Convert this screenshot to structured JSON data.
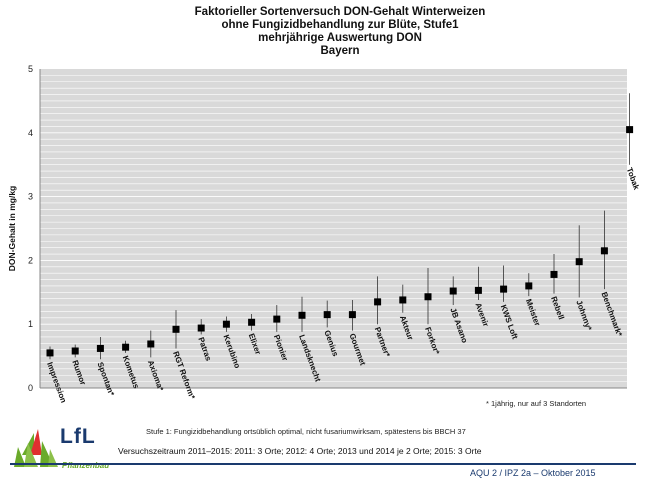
{
  "chart_data": {
    "type": "scatter",
    "title_lines": [
      "Faktorieller  Sortenversuch DON-Gehalt Winterweizen",
      "ohne Fungizidbehandlung zur Blüte, Stufe1",
      "mehrjährige Auswertung DON",
      "Bayern"
    ],
    "ylabel": "DON-Gehalt in mg/kg",
    "ylim": [
      0,
      5
    ],
    "yticks": [
      0,
      1,
      2,
      3,
      4,
      5
    ],
    "grid": true,
    "categories": [
      "Impression",
      "Rumor",
      "Spontan*",
      "Kometus",
      "Axioma*",
      "RGT Reform*",
      "Patras",
      "Kerubino",
      "Elixer",
      "Pionier",
      "Landsknecht",
      "Genius",
      "Gourmet",
      "Partner*",
      "Akteur",
      "Forkor*",
      "JB Asano",
      "Avenir",
      "KWS Loft",
      "Meister",
      "Rebell",
      "Johnny*",
      "Benchmark*",
      "Tobak"
    ],
    "values": [
      0.55,
      0.58,
      0.62,
      0.64,
      0.69,
      0.92,
      0.94,
      1.0,
      1.03,
      1.08,
      1.14,
      1.15,
      1.15,
      1.35,
      1.38,
      1.43,
      1.52,
      1.53,
      1.55,
      1.6,
      1.78,
      1.98,
      2.15,
      4.05
    ],
    "low": [
      0.45,
      0.48,
      0.45,
      0.55,
      0.48,
      0.62,
      0.84,
      0.88,
      0.9,
      0.88,
      0.88,
      0.95,
      0.9,
      1.0,
      1.18,
      1.0,
      1.3,
      1.38,
      1.35,
      1.44,
      1.48,
      1.42,
      1.55,
      3.5
    ],
    "high": [
      0.65,
      0.68,
      0.8,
      0.74,
      0.9,
      1.22,
      1.08,
      1.12,
      1.16,
      1.3,
      1.43,
      1.37,
      1.38,
      1.75,
      1.62,
      1.88,
      1.75,
      1.9,
      1.92,
      1.8,
      2.1,
      2.55,
      2.78,
      4.62
    ]
  },
  "footnote": "* 1jährig, nur auf 3 Standorten",
  "stufe_note": "Stufe 1: Fungizidbehandlung ortsüblich optimal, nicht fusariumwirksam, spätestens bis BBCH 37",
  "zeitraum": "Versuchszeitraum 2011–2015:  2011: 3 Orte;   2012: 4 Orte;   2013 und 2014 je 2 Orte;   2015: 3 Orte",
  "aqu": "AQU 2  / IPZ 2a – Oktober 2015",
  "logo": {
    "name": "LfL",
    "sub": "Pflanzenbau"
  },
  "colors": {
    "plot_bg": "#d9d9d9",
    "grid": "#ffffff",
    "marker": "#000000",
    "brand_blue": "#1a3a6e",
    "brand_green": "#6aaa2a"
  }
}
